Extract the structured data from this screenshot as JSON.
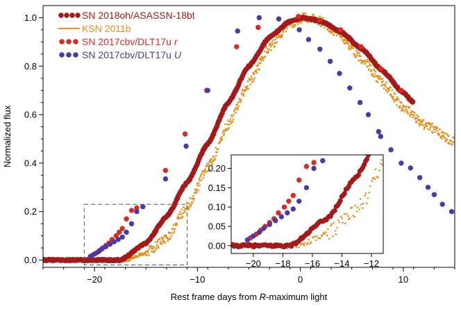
{
  "chart_data": {
    "type": "scatter",
    "xlabel_prefix": "Rest frame days from ",
    "xlabel_italic": "R",
    "xlabel_suffix": "-maximum light",
    "ylabel": "Normalized flux",
    "xlim": [
      -25,
      15
    ],
    "ylim": [
      -0.03,
      1.05
    ],
    "x_ticks": [
      -20,
      -10,
      0,
      10
    ],
    "x_tick_labels": [
      "−20",
      "−10",
      "0",
      "10"
    ],
    "y_ticks": [
      0.0,
      0.2,
      0.4,
      0.6,
      0.8,
      1.0
    ],
    "y_tick_labels": [
      "0.0",
      "0.2",
      "0.4",
      "0.6",
      "0.8",
      "1.0"
    ],
    "legend_position": "top-left",
    "zoom_box": {
      "x": [
        -21,
        -11
      ],
      "y": [
        -0.02,
        0.23
      ]
    },
    "inset": {
      "xlim": [
        -21.5,
        -11.2
      ],
      "ylim": [
        -0.02,
        0.235
      ],
      "x_ticks": [
        -20,
        -18,
        -16,
        -14,
        -12
      ],
      "x_tick_labels": [
        "−20",
        "−18",
        "−16",
        "−14",
        "−12"
      ],
      "y_ticks": [
        0.0,
        0.05,
        0.1,
        0.15,
        0.2
      ],
      "y_tick_labels": [
        "0.00",
        "0.05",
        "0.10",
        "0.15",
        "0.20"
      ]
    },
    "series": [
      {
        "name": "SN 2018oh/ASASSN-18bt",
        "label_main": "SN 2018oh/ASASSN-18bt",
        "label_italic": "",
        "color": "#a31a1a",
        "marker": "large-dense",
        "model": "piecewise-rise",
        "x_range": [
          -25,
          11
        ],
        "t0": -17.5,
        "peak_x": 0.3,
        "shape": [
          {
            "x": -17.5,
            "y": 0.0
          },
          {
            "x": -15.0,
            "y": 0.07
          },
          {
            "x": -13.0,
            "y": 0.18
          },
          {
            "x": -11.0,
            "y": 0.32
          },
          {
            "x": -9.0,
            "y": 0.48
          },
          {
            "x": -7.0,
            "y": 0.65
          },
          {
            "x": -5.0,
            "y": 0.8
          },
          {
            "x": -3.0,
            "y": 0.92
          },
          {
            "x": -1.0,
            "y": 0.985
          },
          {
            "x": 0.3,
            "y": 1.0
          },
          {
            "x": 2.0,
            "y": 0.985
          },
          {
            "x": 4.0,
            "y": 0.94
          },
          {
            "x": 6.0,
            "y": 0.87
          },
          {
            "x": 8.0,
            "y": 0.78
          },
          {
            "x": 10.0,
            "y": 0.69
          },
          {
            "x": 11.0,
            "y": 0.65
          }
        ]
      },
      {
        "name": "KSN 2011b",
        "label_main": "KSN 2011b",
        "label_italic": "",
        "color": "#ee8a12",
        "marker": "small-dense",
        "x_range": [
          -25,
          15
        ],
        "shape": [
          {
            "x": -25.0,
            "y": 0.0
          },
          {
            "x": -17.0,
            "y": 0.0
          },
          {
            "x": -15.0,
            "y": 0.03
          },
          {
            "x": -13.0,
            "y": 0.09
          },
          {
            "x": -11.0,
            "y": 0.22
          },
          {
            "x": -9.0,
            "y": 0.38
          },
          {
            "x": -7.0,
            "y": 0.56
          },
          {
            "x": -5.0,
            "y": 0.73
          },
          {
            "x": -3.0,
            "y": 0.88
          },
          {
            "x": -1.0,
            "y": 0.975
          },
          {
            "x": 0.5,
            "y": 1.0
          },
          {
            "x": 2.0,
            "y": 0.985
          },
          {
            "x": 4.0,
            "y": 0.92
          },
          {
            "x": 6.0,
            "y": 0.83
          },
          {
            "x": 8.0,
            "y": 0.73
          },
          {
            "x": 10.0,
            "y": 0.63
          },
          {
            "x": 12.0,
            "y": 0.56
          },
          {
            "x": 15.0,
            "y": 0.49
          }
        ]
      },
      {
        "name": "SN 2017cbv/DLT17u r",
        "label_main": "SN 2017cbv/DLT17u ",
        "label_italic": "r",
        "color": "#d92b25",
        "marker": "medium",
        "points": [
          {
            "x": -20.2,
            "y": 0.02
          },
          {
            "x": -19.8,
            "y": 0.03
          },
          {
            "x": -19.5,
            "y": 0.04
          },
          {
            "x": -19.2,
            "y": 0.05
          },
          {
            "x": -18.9,
            "y": 0.06
          },
          {
            "x": -18.6,
            "y": 0.07
          },
          {
            "x": -18.3,
            "y": 0.085
          },
          {
            "x": -17.9,
            "y": 0.1
          },
          {
            "x": -17.6,
            "y": 0.115
          },
          {
            "x": -17.3,
            "y": 0.13
          },
          {
            "x": -16.9,
            "y": 0.17
          },
          {
            "x": -16.4,
            "y": 0.205
          },
          {
            "x": -15.9,
            "y": 0.215
          },
          {
            "x": -13.1,
            "y": 0.37
          },
          {
            "x": -11.2,
            "y": 0.52
          },
          {
            "x": -9.1,
            "y": 0.7
          },
          {
            "x": -6.2,
            "y": 0.88
          },
          {
            "x": -4.1,
            "y": 0.96
          },
          {
            "x": -2.1,
            "y": 0.995
          },
          {
            "x": -0.2,
            "y": 1.005
          },
          {
            "x": 1.9,
            "y": 0.99
          },
          {
            "x": 3.9,
            "y": 0.95
          },
          {
            "x": 5.9,
            "y": 0.88
          },
          {
            "x": 7.8,
            "y": 0.79
          },
          {
            "x": 9.8,
            "y": 0.7
          }
        ]
      },
      {
        "name": "SN 2017cbv/DLT17u U",
        "label_main": "SN 2017cbv/DLT17u ",
        "label_italic": "U",
        "color": "#4a3aa8",
        "marker": "medium",
        "points": [
          {
            "x": -20.4,
            "y": 0.015
          },
          {
            "x": -20.0,
            "y": 0.025
          },
          {
            "x": -19.6,
            "y": 0.035
          },
          {
            "x": -19.3,
            "y": 0.045
          },
          {
            "x": -18.9,
            "y": 0.055
          },
          {
            "x": -18.5,
            "y": 0.065
          },
          {
            "x": -18.1,
            "y": 0.075
          },
          {
            "x": -17.7,
            "y": 0.085
          },
          {
            "x": -17.3,
            "y": 0.095
          },
          {
            "x": -16.9,
            "y": 0.115
          },
          {
            "x": -16.4,
            "y": 0.15
          },
          {
            "x": -15.9,
            "y": 0.2
          },
          {
            "x": -15.3,
            "y": 0.22
          },
          {
            "x": -13.1,
            "y": 0.335
          },
          {
            "x": -11.1,
            "y": 0.47
          },
          {
            "x": -9.0,
            "y": 0.7
          },
          {
            "x": -6.1,
            "y": 0.945
          },
          {
            "x": -4.0,
            "y": 1.0
          },
          {
            "x": -2.1,
            "y": 0.995
          },
          {
            "x": -0.1,
            "y": 0.95
          },
          {
            "x": 0.8,
            "y": 0.91
          },
          {
            "x": 1.9,
            "y": 0.87
          },
          {
            "x": 2.9,
            "y": 0.82
          },
          {
            "x": 3.8,
            "y": 0.77
          },
          {
            "x": 4.8,
            "y": 0.71
          },
          {
            "x": 5.8,
            "y": 0.65
          },
          {
            "x": 6.6,
            "y": 0.6
          },
          {
            "x": 7.6,
            "y": 0.53
          },
          {
            "x": 7.8,
            "y": 0.51
          },
          {
            "x": 8.8,
            "y": 0.455
          },
          {
            "x": 9.8,
            "y": 0.4
          },
          {
            "x": 10.7,
            "y": 0.38
          },
          {
            "x": 11.6,
            "y": 0.34
          },
          {
            "x": 12.4,
            "y": 0.3
          },
          {
            "x": 13.0,
            "y": 0.27
          },
          {
            "x": 13.8,
            "y": 0.23
          },
          {
            "x": 14.7,
            "y": 0.2
          }
        ]
      }
    ]
  }
}
